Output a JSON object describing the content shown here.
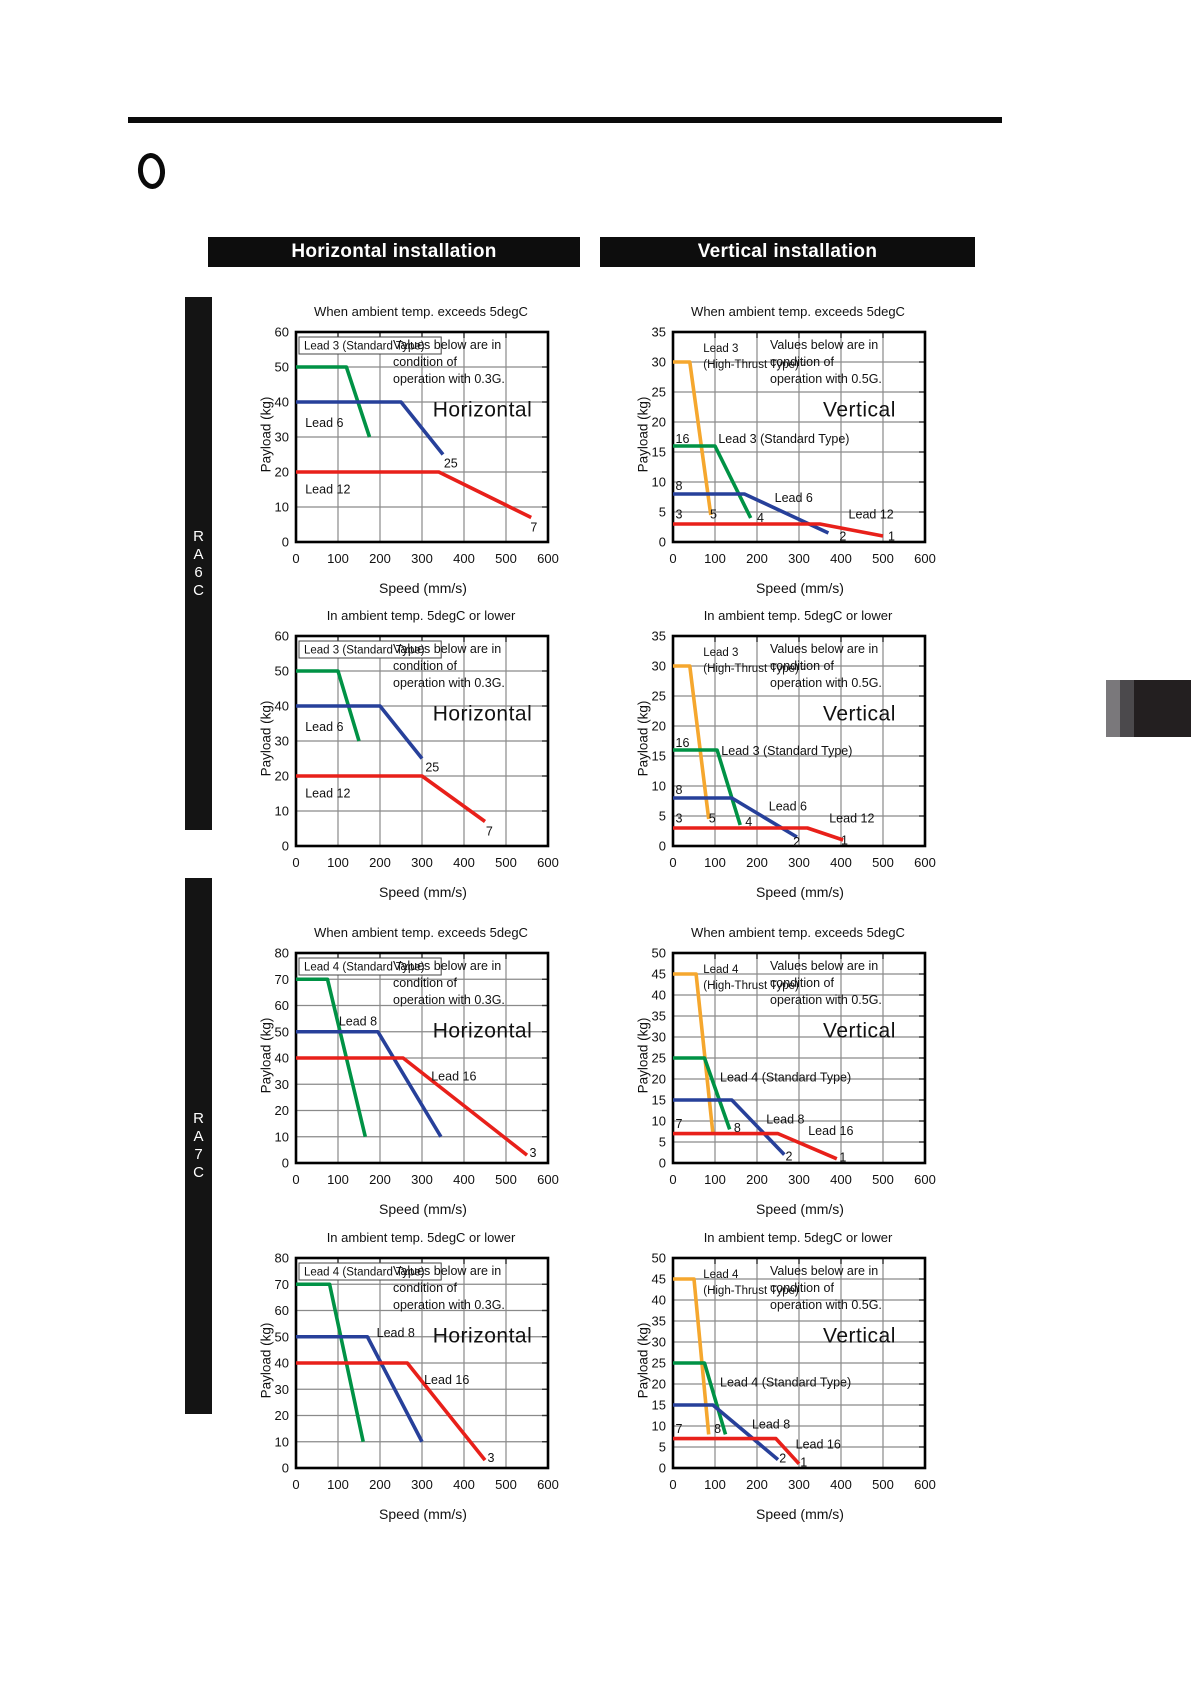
{
  "page": {
    "column_headers": [
      "Horizontal installation",
      "Vertical installation"
    ],
    "models": [
      "RA6C",
      "RA7C"
    ],
    "icons": [
      "section-marker-icon"
    ],
    "edge_tab_colors": [
      "#7a787b",
      "#4b494c",
      "#231f20"
    ]
  },
  "colors": {
    "green": "#009245",
    "blue": "#27409a",
    "red": "#e8201a",
    "orange": "#f5a72e",
    "grid": "#8a8a8a",
    "border": "#000000",
    "text": "#111111",
    "bar_bg": "#0d0d0d"
  },
  "chart_data": [
    {
      "id": "ra6c-horizontal-above5",
      "type": "line",
      "model": "RA6C",
      "installation": "Horizontal",
      "title": "When ambient temp. exceeds 5degC",
      "xlabel": "Speed (mm/s)",
      "ylabel": "Payload (kg)",
      "xlim": [
        0,
        600
      ],
      "xstep": 100,
      "ylim": [
        0,
        60
      ],
      "ystep": 10,
      "lead_box": "Lead 3 (Standard Type)",
      "high_thrust_label": null,
      "note": [
        "Values below are in",
        "condition of",
        "operation with 0.3G."
      ],
      "orientation_label": "Horizontal",
      "series": [
        {
          "name": "Lead 3 (Standard Type)",
          "color_key": "green",
          "points": [
            [
              0,
              50
            ],
            [
              120,
              50
            ],
            [
              175,
              30
            ]
          ]
        },
        {
          "name": "Lead 6",
          "color_key": "blue",
          "points": [
            [
              0,
              40
            ],
            [
              250,
              40
            ],
            [
              350,
              25
            ]
          ]
        },
        {
          "name": "Lead 12",
          "color_key": "red",
          "points": [
            [
              0,
              20
            ],
            [
              340,
              20
            ],
            [
              560,
              7
            ]
          ]
        }
      ],
      "labels": [
        {
          "t": "Lead 6",
          "x": 22,
          "y": 34
        },
        {
          "t": "Lead 12",
          "x": 22,
          "y": 15
        },
        {
          "t": "25",
          "x": 352,
          "y": 22.5
        },
        {
          "t": "7",
          "x": 558,
          "y": 4.2
        }
      ]
    },
    {
      "id": "ra6c-vertical-above5",
      "type": "line",
      "model": "RA6C",
      "installation": "Vertical",
      "title": "When ambient temp. exceeds 5degC",
      "xlabel": "Speed (mm/s)",
      "ylabel": "Payload (kg)",
      "xlim": [
        0,
        600
      ],
      "xstep": 100,
      "ylim": [
        0,
        35
      ],
      "ystep": 5,
      "lead_box": null,
      "high_thrust_label": [
        "Lead 3",
        "(High-Thrust Type) -"
      ],
      "note": [
        "Values below are in",
        "condition of",
        "operation with 0.5G."
      ],
      "orientation_label": "Vertical",
      "series": [
        {
          "name": "Lead 3 (High-Thrust Type)",
          "color_key": "orange",
          "points": [
            [
              0,
              30
            ],
            [
              40,
              30
            ],
            [
              90,
              4.5
            ]
          ]
        },
        {
          "name": "Lead 3 (Standard Type)",
          "color_key": "green",
          "points": [
            [
              0,
              16
            ],
            [
              100,
              16
            ],
            [
              185,
              4
            ]
          ]
        },
        {
          "name": "Lead 6",
          "color_key": "blue",
          "points": [
            [
              0,
              8
            ],
            [
              170,
              8
            ],
            [
              370,
              1.5
            ]
          ]
        },
        {
          "name": "Lead 12",
          "color_key": "red",
          "points": [
            [
              0,
              3
            ],
            [
              350,
              3
            ],
            [
              500,
              1
            ]
          ]
        }
      ],
      "labels": [
        {
          "t": "Lead 3 (Standard Type)",
          "x": 108,
          "y": 17.2
        },
        {
          "t": "Lead 6",
          "x": 242,
          "y": 7.3
        },
        {
          "t": "Lead 12",
          "x": 418,
          "y": 4.6
        },
        {
          "t": "16",
          "x": 6,
          "y": 17.2
        },
        {
          "t": "8",
          "x": 6,
          "y": 9.3
        },
        {
          "t": "3",
          "x": 6,
          "y": 4.6
        },
        {
          "t": "5",
          "x": 88,
          "y": 4.6
        },
        {
          "t": "4",
          "x": 200,
          "y": 4.0
        },
        {
          "t": "2",
          "x": 396,
          "y": 0.9
        },
        {
          "t": "1",
          "x": 512,
          "y": 0.9
        }
      ]
    },
    {
      "id": "ra6c-horizontal-below5",
      "type": "line",
      "model": "RA6C",
      "installation": "Horizontal",
      "title": "In ambient temp. 5degC or lower",
      "xlabel": "Speed (mm/s)",
      "ylabel": "Payload (kg)",
      "xlim": [
        0,
        600
      ],
      "xstep": 100,
      "ylim": [
        0,
        60
      ],
      "ystep": 10,
      "lead_box": "Lead 3 (Standard Type)",
      "high_thrust_label": null,
      "note": [
        "Values below are in",
        "condition of",
        "operation with 0.3G."
      ],
      "orientation_label": "Horizontal",
      "series": [
        {
          "name": "Lead 3 (Standard Type)",
          "color_key": "green",
          "points": [
            [
              0,
              50
            ],
            [
              100,
              50
            ],
            [
              150,
              30
            ]
          ]
        },
        {
          "name": "Lead 6",
          "color_key": "blue",
          "points": [
            [
              0,
              40
            ],
            [
              200,
              40
            ],
            [
              300,
              25
            ]
          ]
        },
        {
          "name": "Lead 12",
          "color_key": "red",
          "points": [
            [
              0,
              20
            ],
            [
              300,
              20
            ],
            [
              450,
              7
            ]
          ]
        }
      ],
      "labels": [
        {
          "t": "Lead 6",
          "x": 22,
          "y": 34
        },
        {
          "t": "Lead 12",
          "x": 22,
          "y": 15
        },
        {
          "t": "25",
          "x": 308,
          "y": 22.5
        },
        {
          "t": "7",
          "x": 452,
          "y": 4.2
        }
      ]
    },
    {
      "id": "ra6c-vertical-below5",
      "type": "line",
      "model": "RA6C",
      "installation": "Vertical",
      "title": "In ambient temp. 5degC or lower",
      "xlabel": "Speed (mm/s)",
      "ylabel": "Payload (kg)",
      "xlim": [
        0,
        600
      ],
      "xstep": 100,
      "ylim": [
        0,
        35
      ],
      "ystep": 5,
      "lead_box": null,
      "high_thrust_label": [
        "Lead 3",
        "(High-Thrust Type) -"
      ],
      "note": [
        "Values below are in",
        "condition of",
        "operation with 0.5G."
      ],
      "orientation_label": "Vertical",
      "series": [
        {
          "name": "Lead 3 (High-Thrust Type)",
          "color_key": "orange",
          "points": [
            [
              0,
              30
            ],
            [
              40,
              30
            ],
            [
              85,
              4.5
            ]
          ]
        },
        {
          "name": "Lead 3 (Standard Type)",
          "color_key": "green",
          "points": [
            [
              0,
              16
            ],
            [
              105,
              16
            ],
            [
              160,
              3.5
            ]
          ]
        },
        {
          "name": "Lead 6",
          "color_key": "blue",
          "points": [
            [
              0,
              8
            ],
            [
              140,
              8
            ],
            [
              295,
              1.5
            ]
          ]
        },
        {
          "name": "Lead 12",
          "color_key": "red",
          "points": [
            [
              0,
              3
            ],
            [
              320,
              3
            ],
            [
              405,
              1
            ]
          ]
        }
      ],
      "labels": [
        {
          "t": "Lead 3 (Standard Type)",
          "x": 115,
          "y": 15.8
        },
        {
          "t": "Lead 6",
          "x": 228,
          "y": 6.6
        },
        {
          "t": "Lead 12",
          "x": 372,
          "y": 4.6
        },
        {
          "t": "16",
          "x": 6,
          "y": 17.2
        },
        {
          "t": "8",
          "x": 6,
          "y": 9.3
        },
        {
          "t": "3",
          "x": 6,
          "y": 4.6
        },
        {
          "t": "5",
          "x": 85,
          "y": 4.6
        },
        {
          "t": "4",
          "x": 172,
          "y": 4.0
        },
        {
          "t": "2",
          "x": 286,
          "y": 0.7
        },
        {
          "t": "1",
          "x": 400,
          "y": 0.9
        }
      ]
    },
    {
      "id": "ra7c-horizontal-above5",
      "type": "line",
      "model": "RA7C",
      "installation": "Horizontal",
      "title": "When ambient temp. exceeds 5degC",
      "xlabel": "Speed (mm/s)",
      "ylabel": "Payload (kg)",
      "xlim": [
        0,
        600
      ],
      "xstep": 100,
      "ylim": [
        0,
        80
      ],
      "ystep": 10,
      "lead_box": "Lead 4 (Standard Type)",
      "high_thrust_label": null,
      "note": [
        "Values below are in",
        "condition of",
        "operation with 0.3G."
      ],
      "orientation_label": "Horizontal",
      "series": [
        {
          "name": "Lead 4 (Standard Type)",
          "color_key": "green",
          "points": [
            [
              0,
              70
            ],
            [
              75,
              70
            ],
            [
              165,
              10
            ]
          ]
        },
        {
          "name": "Lead 8",
          "color_key": "blue",
          "points": [
            [
              0,
              50
            ],
            [
              195,
              50
            ],
            [
              345,
              10
            ]
          ]
        },
        {
          "name": "Lead 16",
          "color_key": "red",
          "points": [
            [
              0,
              40
            ],
            [
              255,
              40
            ],
            [
              550,
              3
            ]
          ]
        }
      ],
      "labels": [
        {
          "t": "Lead 8",
          "x": 102,
          "y": 54
        },
        {
          "t": "Lead 16",
          "x": 322,
          "y": 33
        },
        {
          "t": "3",
          "x": 556,
          "y": 3.8
        }
      ]
    },
    {
      "id": "ra7c-vertical-above5",
      "type": "line",
      "model": "RA7C",
      "installation": "Vertical",
      "title": "When ambient temp. exceeds 5degC",
      "xlabel": "Speed (mm/s)",
      "ylabel": "Payload (kg)",
      "xlim": [
        0,
        600
      ],
      "xstep": 100,
      "ylim": [
        0,
        50
      ],
      "ystep": 5,
      "lead_box": null,
      "high_thrust_label": [
        "Lead 4",
        "(High-Thrust Type)"
      ],
      "note": [
        "Values below are in",
        "condition of",
        "operation with 0.5G."
      ],
      "orientation_label": "Vertical",
      "series": [
        {
          "name": "Lead 4 (High-Thrust Type)",
          "color_key": "orange",
          "points": [
            [
              0,
              45
            ],
            [
              55,
              45
            ],
            [
              95,
              7
            ]
          ]
        },
        {
          "name": "Lead 4 (Standard Type)",
          "color_key": "green",
          "points": [
            [
              0,
              25
            ],
            [
              75,
              25
            ],
            [
              135,
              8
            ]
          ]
        },
        {
          "name": "Lead 8",
          "color_key": "blue",
          "points": [
            [
              0,
              15
            ],
            [
              140,
              15
            ],
            [
              265,
              2
            ]
          ]
        },
        {
          "name": "Lead 16",
          "color_key": "red",
          "points": [
            [
              0,
              7
            ],
            [
              250,
              7
            ],
            [
              390,
              1
            ]
          ]
        }
      ],
      "labels": [
        {
          "t": "Lead 4 (Standard Type)",
          "x": 112,
          "y": 20.3
        },
        {
          "t": "Lead 8",
          "x": 222,
          "y": 10.3
        },
        {
          "t": "Lead 16",
          "x": 322,
          "y": 7.6
        },
        {
          "t": "7",
          "x": 6,
          "y": 9.3
        },
        {
          "t": "8",
          "x": 145,
          "y": 8.3
        },
        {
          "t": "2",
          "x": 268,
          "y": 1.6
        },
        {
          "t": "1",
          "x": 396,
          "y": 1.3
        }
      ]
    },
    {
      "id": "ra7c-horizontal-below5",
      "type": "line",
      "model": "RA7C",
      "installation": "Horizontal",
      "title": "In ambient temp. 5degC or lower",
      "xlabel": "Speed (mm/s)",
      "ylabel": "Payload (kg)",
      "xlim": [
        0,
        600
      ],
      "xstep": 100,
      "ylim": [
        0,
        80
      ],
      "ystep": 10,
      "lead_box": "Lead 4 (Standard Type)",
      "high_thrust_label": null,
      "note": [
        "Values below are in",
        "condition of",
        "operation with 0.3G."
      ],
      "orientation_label": "Horizontal",
      "series": [
        {
          "name": "Lead 4 (Standard Type)",
          "color_key": "green",
          "points": [
            [
              0,
              70
            ],
            [
              80,
              70
            ],
            [
              160,
              10
            ]
          ]
        },
        {
          "name": "Lead 8",
          "color_key": "blue",
          "points": [
            [
              0,
              50
            ],
            [
              170,
              50
            ],
            [
              300,
              10
            ]
          ]
        },
        {
          "name": "Lead 16",
          "color_key": "red",
          "points": [
            [
              0,
              40
            ],
            [
              265,
              40
            ],
            [
              450,
              3
            ]
          ]
        }
      ],
      "labels": [
        {
          "t": "Lead 8",
          "x": 192,
          "y": 51.5
        },
        {
          "t": "Lead 16",
          "x": 305,
          "y": 33.5
        },
        {
          "t": "3",
          "x": 456,
          "y": 3.8
        }
      ]
    },
    {
      "id": "ra7c-vertical-below5",
      "type": "line",
      "model": "RA7C",
      "installation": "Vertical",
      "title": "In ambient temp. 5degC or lower",
      "xlabel": "Speed (mm/s)",
      "ylabel": "Payload (kg)",
      "xlim": [
        0,
        600
      ],
      "xstep": 100,
      "ylim": [
        0,
        50
      ],
      "ystep": 5,
      "lead_box": null,
      "high_thrust_label": [
        "Lead 4",
        "(High-Thrust Type)"
      ],
      "note": [
        "Values below are in",
        "condition of",
        "operation with 0.5G."
      ],
      "orientation_label": "Vertical",
      "series": [
        {
          "name": "Lead 4 (High-Thrust Type)",
          "color_key": "orange",
          "points": [
            [
              0,
              45
            ],
            [
              50,
              45
            ],
            [
              85,
              8
            ]
          ]
        },
        {
          "name": "Lead 4 (Standard Type)",
          "color_key": "green",
          "points": [
            [
              0,
              25
            ],
            [
              75,
              25
            ],
            [
              125,
              8
            ]
          ]
        },
        {
          "name": "Lead 8",
          "color_key": "blue",
          "points": [
            [
              0,
              15
            ],
            [
              95,
              15
            ],
            [
              250,
              2
            ]
          ]
        },
        {
          "name": "Lead 16",
          "color_key": "red",
          "points": [
            [
              0,
              7
            ],
            [
              245,
              7
            ],
            [
              300,
              1
            ]
          ]
        }
      ],
      "labels": [
        {
          "t": "Lead 4 (Standard Type)",
          "x": 112,
          "y": 20.3
        },
        {
          "t": "Lead 8",
          "x": 188,
          "y": 10.3
        },
        {
          "t": "Lead 16",
          "x": 292,
          "y": 5.6
        },
        {
          "t": "7",
          "x": 6,
          "y": 9.3
        },
        {
          "t": "8",
          "x": 98,
          "y": 9.3
        },
        {
          "t": "2",
          "x": 253,
          "y": 2.3
        },
        {
          "t": "1",
          "x": 303,
          "y": 1.3
        }
      ]
    }
  ]
}
